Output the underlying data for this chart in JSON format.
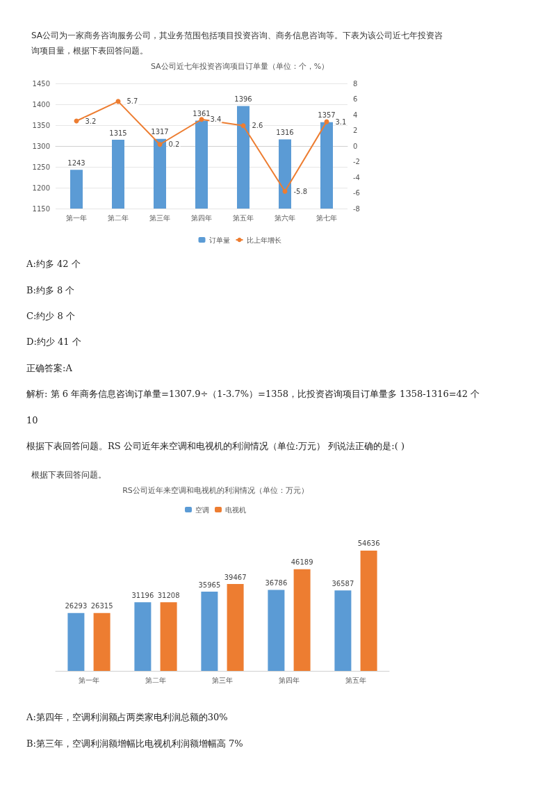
{
  "chart_data": [
    {
      "type": "bar",
      "title": "SA公司近七年投资咨询项目订单量（单位：个，%）",
      "categories": [
        "第一年",
        "第二年",
        "第三年",
        "第四年",
        "第五年",
        "第六年",
        "第七年"
      ],
      "series": [
        {
          "name": "订单量",
          "type": "bar",
          "color": "#5b9bd5",
          "values": [
            1243,
            1315,
            1317,
            1361,
            1396,
            1316,
            1357
          ]
        },
        {
          "name": "比上年增长",
          "type": "line",
          "axis": "y2",
          "color": "#ed7d31",
          "values": [
            3.2,
            5.7,
            0.2,
            3.4,
            2.6,
            -5.8,
            3.1
          ]
        }
      ],
      "ylim": [
        1150,
        1450
      ],
      "yticks": [
        1150,
        1200,
        1250,
        1300,
        1350,
        1400,
        1450
      ],
      "y2lim": [
        -8,
        8
      ],
      "y2ticks": [
        -8,
        -6,
        -4,
        -2,
        0,
        2,
        4,
        6,
        8
      ],
      "data_labels": true,
      "grid": "y",
      "legend": "bottom",
      "marker": "circle",
      "annotations": [
        "SA公司为一家商务咨询服务公司，其业务范围包括项目投资咨询、商务信息咨询等。下表为该公司近七年投资咨询项目量，根据下表回答问题。",
        "A:约多 42 个",
        "B:约多 8 个",
        "C:约少 8 个",
        "D:约少 41 个",
        "正确答案:A",
        "解析: 第 6 年商务信息咨询订单量=1307.9÷（1-3.7%）=1358，比投资咨询项目订单量多 1358-1316=42 个",
        "10",
        "根据下表回答问题。RS 公司近年来空调和电视机的利润情况（单位:万元） 列说法正确的是:( )"
      ]
    },
    {
      "type": "bar",
      "title": "RS公司近年来空调和电视机的利润情况（单位：万元）",
      "categories": [
        "第一年",
        "第二年",
        "第三年",
        "第四年",
        "第五年"
      ],
      "series": [
        {
          "name": "空调",
          "color": "#5b9bd5",
          "values": [
            26293,
            31196,
            35965,
            36786,
            36587
          ]
        },
        {
          "name": "电视机",
          "color": "#ed7d31",
          "values": [
            26315,
            31208,
            39467,
            46189,
            54636
          ]
        }
      ],
      "data_labels": true,
      "legend": "top",
      "tick_labels": "x",
      "annotations": [
        "根据下表回答问题。",
        "A:第四年，空调利润额占两类家电利润总额的30%",
        "B:第三年，空调利润额增幅比电视机利润额增幅高 7%"
      ]
    }
  ]
}
